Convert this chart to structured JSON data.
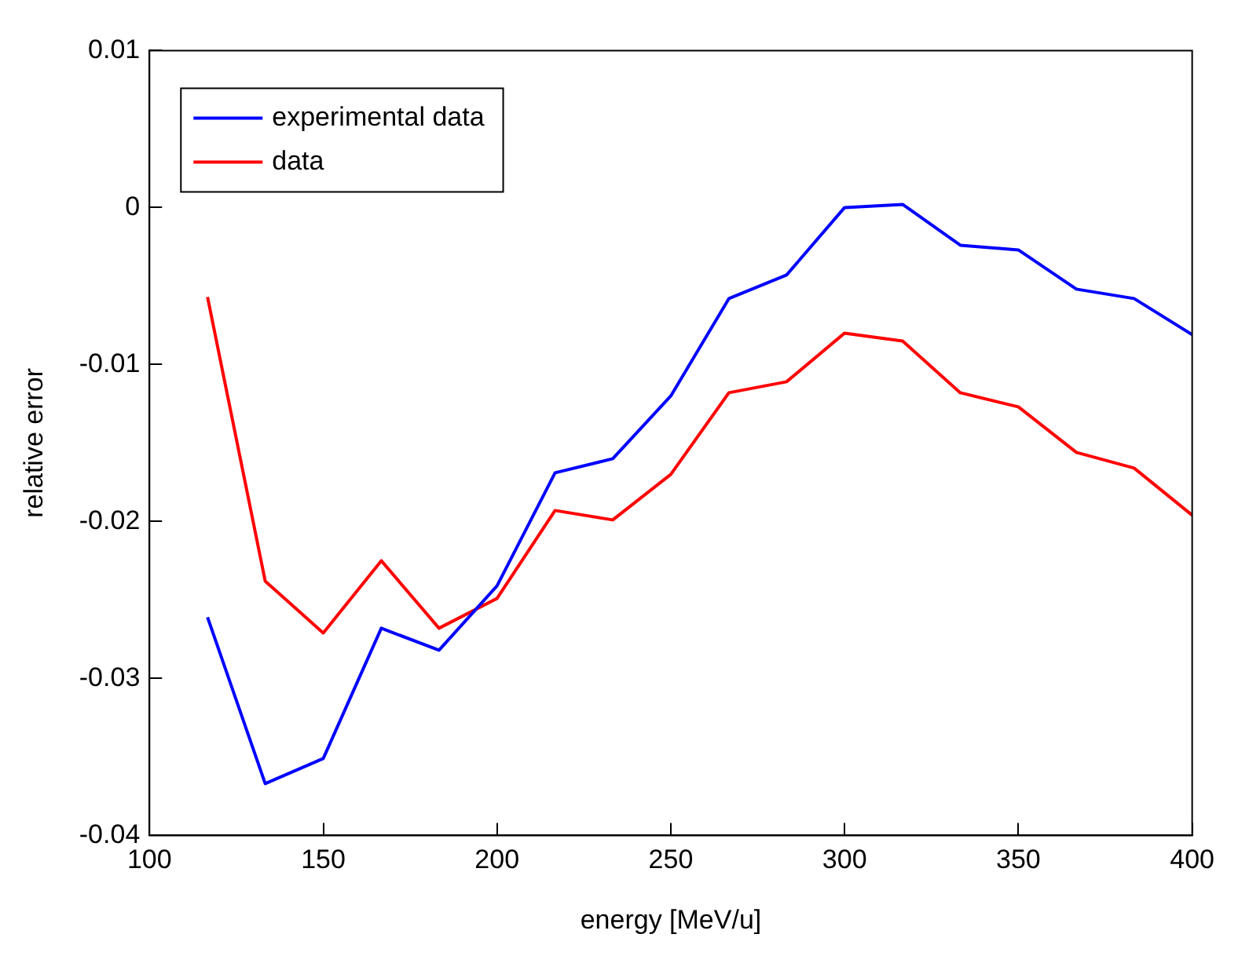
{
  "chart_data": {
    "type": "line",
    "xlabel": "energy [MeV/u]",
    "ylabel": "relative error",
    "x": [
      116.7,
      133.3,
      150,
      166.7,
      183.3,
      200,
      216.7,
      233.3,
      250,
      266.7,
      283.3,
      300,
      316.7,
      333.3,
      350,
      366.7,
      383.3,
      400
    ],
    "series": [
      {
        "name": "experimental data",
        "color": "#0000ff",
        "values": [
          -0.0261,
          -0.0367,
          -0.0351,
          -0.0268,
          -0.0282,
          -0.0241,
          -0.0169,
          -0.016,
          -0.012,
          -0.0058,
          -0.0043,
          0,
          0.0002,
          -0.0024,
          -0.0027,
          -0.0052,
          -0.0058,
          -0.0081
        ]
      },
      {
        "name": "data",
        "color": "#ff0000",
        "values": [
          -0.0057,
          -0.0238,
          -0.0271,
          -0.0225,
          -0.0268,
          -0.0249,
          -0.0193,
          -0.0199,
          -0.017,
          -0.0118,
          -0.0111,
          -0.008,
          -0.0085,
          -0.0118,
          -0.0127,
          -0.0156,
          -0.0166,
          -0.0196
        ]
      }
    ],
    "xlim": [
      100,
      400
    ],
    "xticks": [
      100,
      150,
      200,
      250,
      300,
      350,
      400
    ],
    "ylim": [
      -0.04,
      0.01
    ],
    "yticks": [
      -0.04,
      -0.03,
      -0.02,
      -0.01,
      0,
      0.01
    ],
    "grid": false,
    "legend": "top left",
    "marker": "none",
    "line_style": "solid"
  }
}
